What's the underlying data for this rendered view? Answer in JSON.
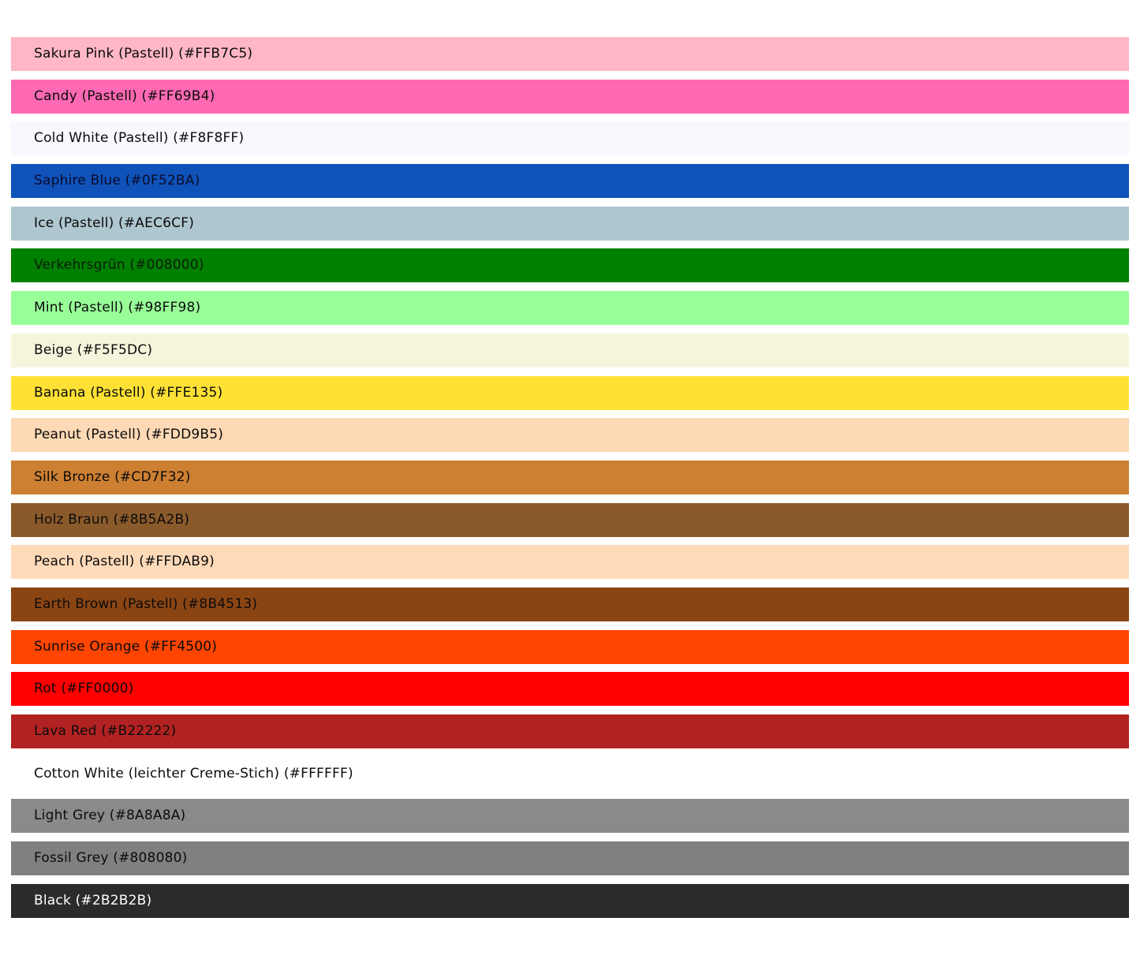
{
  "page": {
    "background": "#FFFFFF",
    "default_text_color": "#0B0B0B"
  },
  "swatches": [
    {
      "label": "Sakura Pink (Pastell) (#FFB7C5)",
      "color": "#FFB7C5",
      "text_color": "#0B0B0B"
    },
    {
      "label": "Candy (Pastell) (#FF69B4)",
      "color": "#FF69B4",
      "text_color": "#0B0B0B"
    },
    {
      "label": "Cold White (Pastell) (#F8F8FF)",
      "color": "#F8F8FF",
      "text_color": "#0B0B0B"
    },
    {
      "label": "Saphire Blue (#0F52BA)",
      "color": "#0F52BA",
      "text_color": "#0B0B2B"
    },
    {
      "label": "Ice (Pastell) (#AEC6CF)",
      "color": "#AEC6CF",
      "text_color": "#0B0B0B"
    },
    {
      "label": "Verkehrsgrün (#008000)",
      "color": "#008000",
      "text_color": "#0B1B0B"
    },
    {
      "label": "Mint (Pastell) (#98FF98)",
      "color": "#98FF98",
      "text_color": "#0B0B0B"
    },
    {
      "label": "Beige (#F5F5DC)",
      "color": "#F5F5DC",
      "text_color": "#0B0B0B"
    },
    {
      "label": "Banana (Pastell) (#FFE135)",
      "color": "#FFE135",
      "text_color": "#0B0B0B"
    },
    {
      "label": "Peanut (Pastell) (#FDD9B5)",
      "color": "#FDD9B5",
      "text_color": "#0B0B0B"
    },
    {
      "label": "Silk Bronze (#CD7F32)",
      "color": "#CD7F32",
      "text_color": "#0B0B0B"
    },
    {
      "label": "Holz Braun (#8B5A2B)",
      "color": "#8B5A2B",
      "text_color": "#0B0B0B"
    },
    {
      "label": "Peach (Pastell) (#FFDAB9)",
      "color": "#FFDAB9",
      "text_color": "#0B0B0B"
    },
    {
      "label": "Earth Brown (Pastell) (#8B4513)",
      "color": "#8B4513",
      "text_color": "#0B0B0B"
    },
    {
      "label": "Sunrise Orange (#FF4500)",
      "color": "#FF4500",
      "text_color": "#0B0B0B"
    },
    {
      "label": "Rot (#FF0000)",
      "color": "#FF0000",
      "text_color": "#0B0B0B"
    },
    {
      "label": "Lava Red (#B22222)",
      "color": "#B22222",
      "text_color": "#0B0B0B"
    },
    {
      "label": "Cotton White (leichter Creme-Stich) (#FFFFFF)",
      "color": "#FFFFFF",
      "text_color": "#0B0B0B"
    },
    {
      "label": "Light Grey (#8A8A8A)",
      "color": "#8A8A8A",
      "text_color": "#0B0B0B"
    },
    {
      "label": "Fossil Grey (#808080)",
      "color": "#808080",
      "text_color": "#0B0B0B"
    },
    {
      "label": "Black (#2B2B2B)",
      "color": "#2B2B2B",
      "text_color": "#FFFFFF"
    }
  ]
}
